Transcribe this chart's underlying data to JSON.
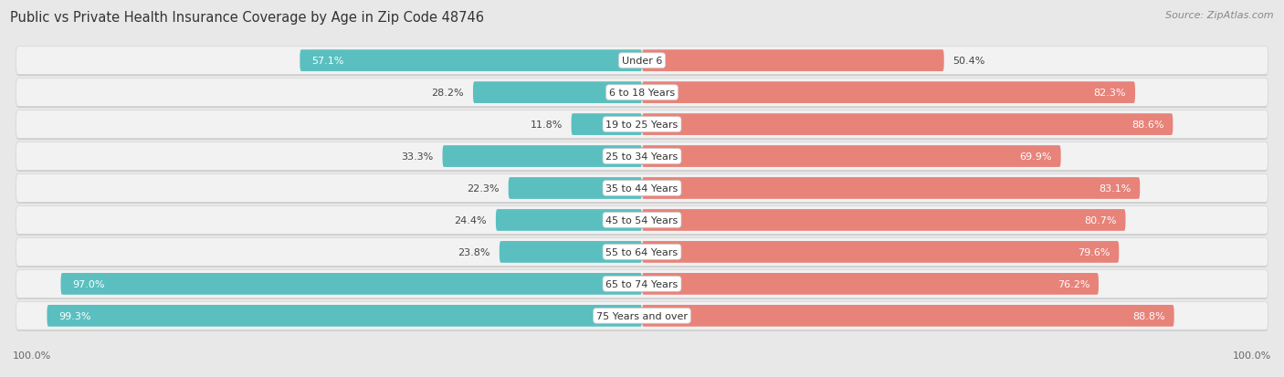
{
  "title": "Public vs Private Health Insurance Coverage by Age in Zip Code 48746",
  "source": "Source: ZipAtlas.com",
  "categories": [
    "Under 6",
    "6 to 18 Years",
    "19 to 25 Years",
    "25 to 34 Years",
    "35 to 44 Years",
    "45 to 54 Years",
    "55 to 64 Years",
    "65 to 74 Years",
    "75 Years and over"
  ],
  "public_values": [
    57.1,
    28.2,
    11.8,
    33.3,
    22.3,
    24.4,
    23.8,
    97.0,
    99.3
  ],
  "private_values": [
    50.4,
    82.3,
    88.6,
    69.9,
    83.1,
    80.7,
    79.6,
    76.2,
    88.8
  ],
  "public_color": "#5bbfc0",
  "private_color": "#e8837a",
  "background_color": "#e8e8e8",
  "row_bg": "#f2f2f2",
  "row_border": "#d5d5d5",
  "title_fontsize": 10.5,
  "label_fontsize": 8.0,
  "value_fontsize": 8.0,
  "legend_fontsize": 8.5,
  "source_fontsize": 8.0,
  "axis_label_fontsize": 8.0
}
